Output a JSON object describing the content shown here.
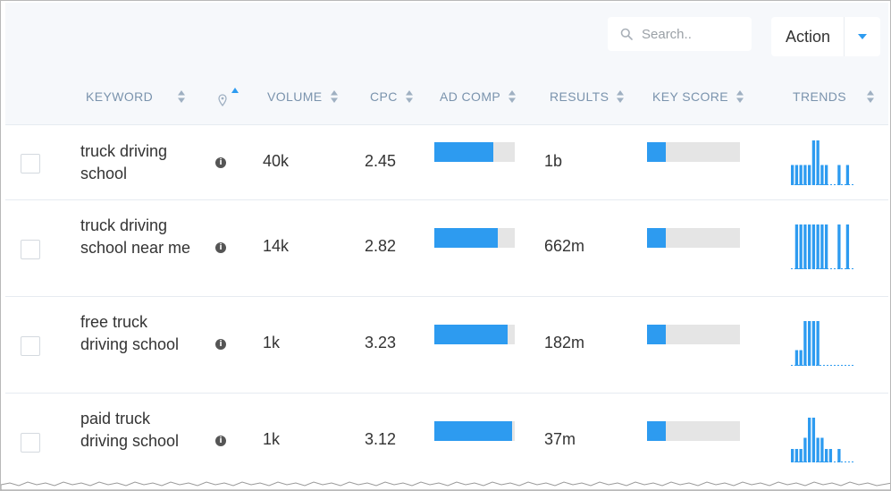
{
  "search": {
    "placeholder": "Search.."
  },
  "action": {
    "label": "Action"
  },
  "columns": {
    "keyword": "KEYWORD",
    "volume": "VOLUME",
    "cpc": "CPC",
    "ad_comp": "AD COMP",
    "results": "RESULTS",
    "key_score": "KEY SCORE",
    "trends": "TRENDS"
  },
  "colors": {
    "accent": "#2d9bf0",
    "track": "#e5e5e5",
    "header_text": "#7a93ad",
    "header_bg": "#f6f8fb"
  },
  "icons": {
    "search": "search-icon",
    "location": "location-pin-icon",
    "info": "info-icon",
    "sort": "sort-arrows-icon",
    "dropdown": "caret-down-icon"
  },
  "rows": [
    {
      "keyword": "truck driving school",
      "volume": "40k",
      "cpc": "2.45",
      "ad_comp": 0.73,
      "results": "1b",
      "key_score": 0.2,
      "trend": [
        0.45,
        0.45,
        0.45,
        0.45,
        0.45,
        1.0,
        1.0,
        0.45,
        0.45,
        0.0,
        0.0,
        0.45,
        0.0,
        0.45
      ]
    },
    {
      "keyword": "truck driving school near me",
      "volume": "14k",
      "cpc": "2.82",
      "ad_comp": 0.79,
      "results": "662m",
      "key_score": 0.2,
      "trend": [
        0.0,
        1.0,
        1.0,
        1.0,
        1.0,
        1.0,
        1.0,
        1.0,
        1.0,
        0.0,
        0.0,
        1.0,
        0.0,
        1.0
      ]
    },
    {
      "keyword": "free truck driving school",
      "volume": "1k",
      "cpc": "3.23",
      "ad_comp": 0.91,
      "results": "182m",
      "key_score": 0.2,
      "trend": [
        0.0,
        0.35,
        0.35,
        1.0,
        1.0,
        1.0,
        1.0,
        0.0,
        0.0,
        0.0,
        0.0,
        0.0,
        0.0,
        0.0
      ]
    },
    {
      "keyword": "paid truck driving school",
      "volume": "1k",
      "cpc": "3.12",
      "ad_comp": 0.97,
      "results": "37m",
      "key_score": 0.2,
      "trend": [
        0.3,
        0.3,
        0.3,
        0.55,
        1.0,
        1.0,
        0.55,
        0.55,
        0.3,
        0.3,
        0.0,
        0.3,
        0.0,
        0.0
      ]
    }
  ]
}
